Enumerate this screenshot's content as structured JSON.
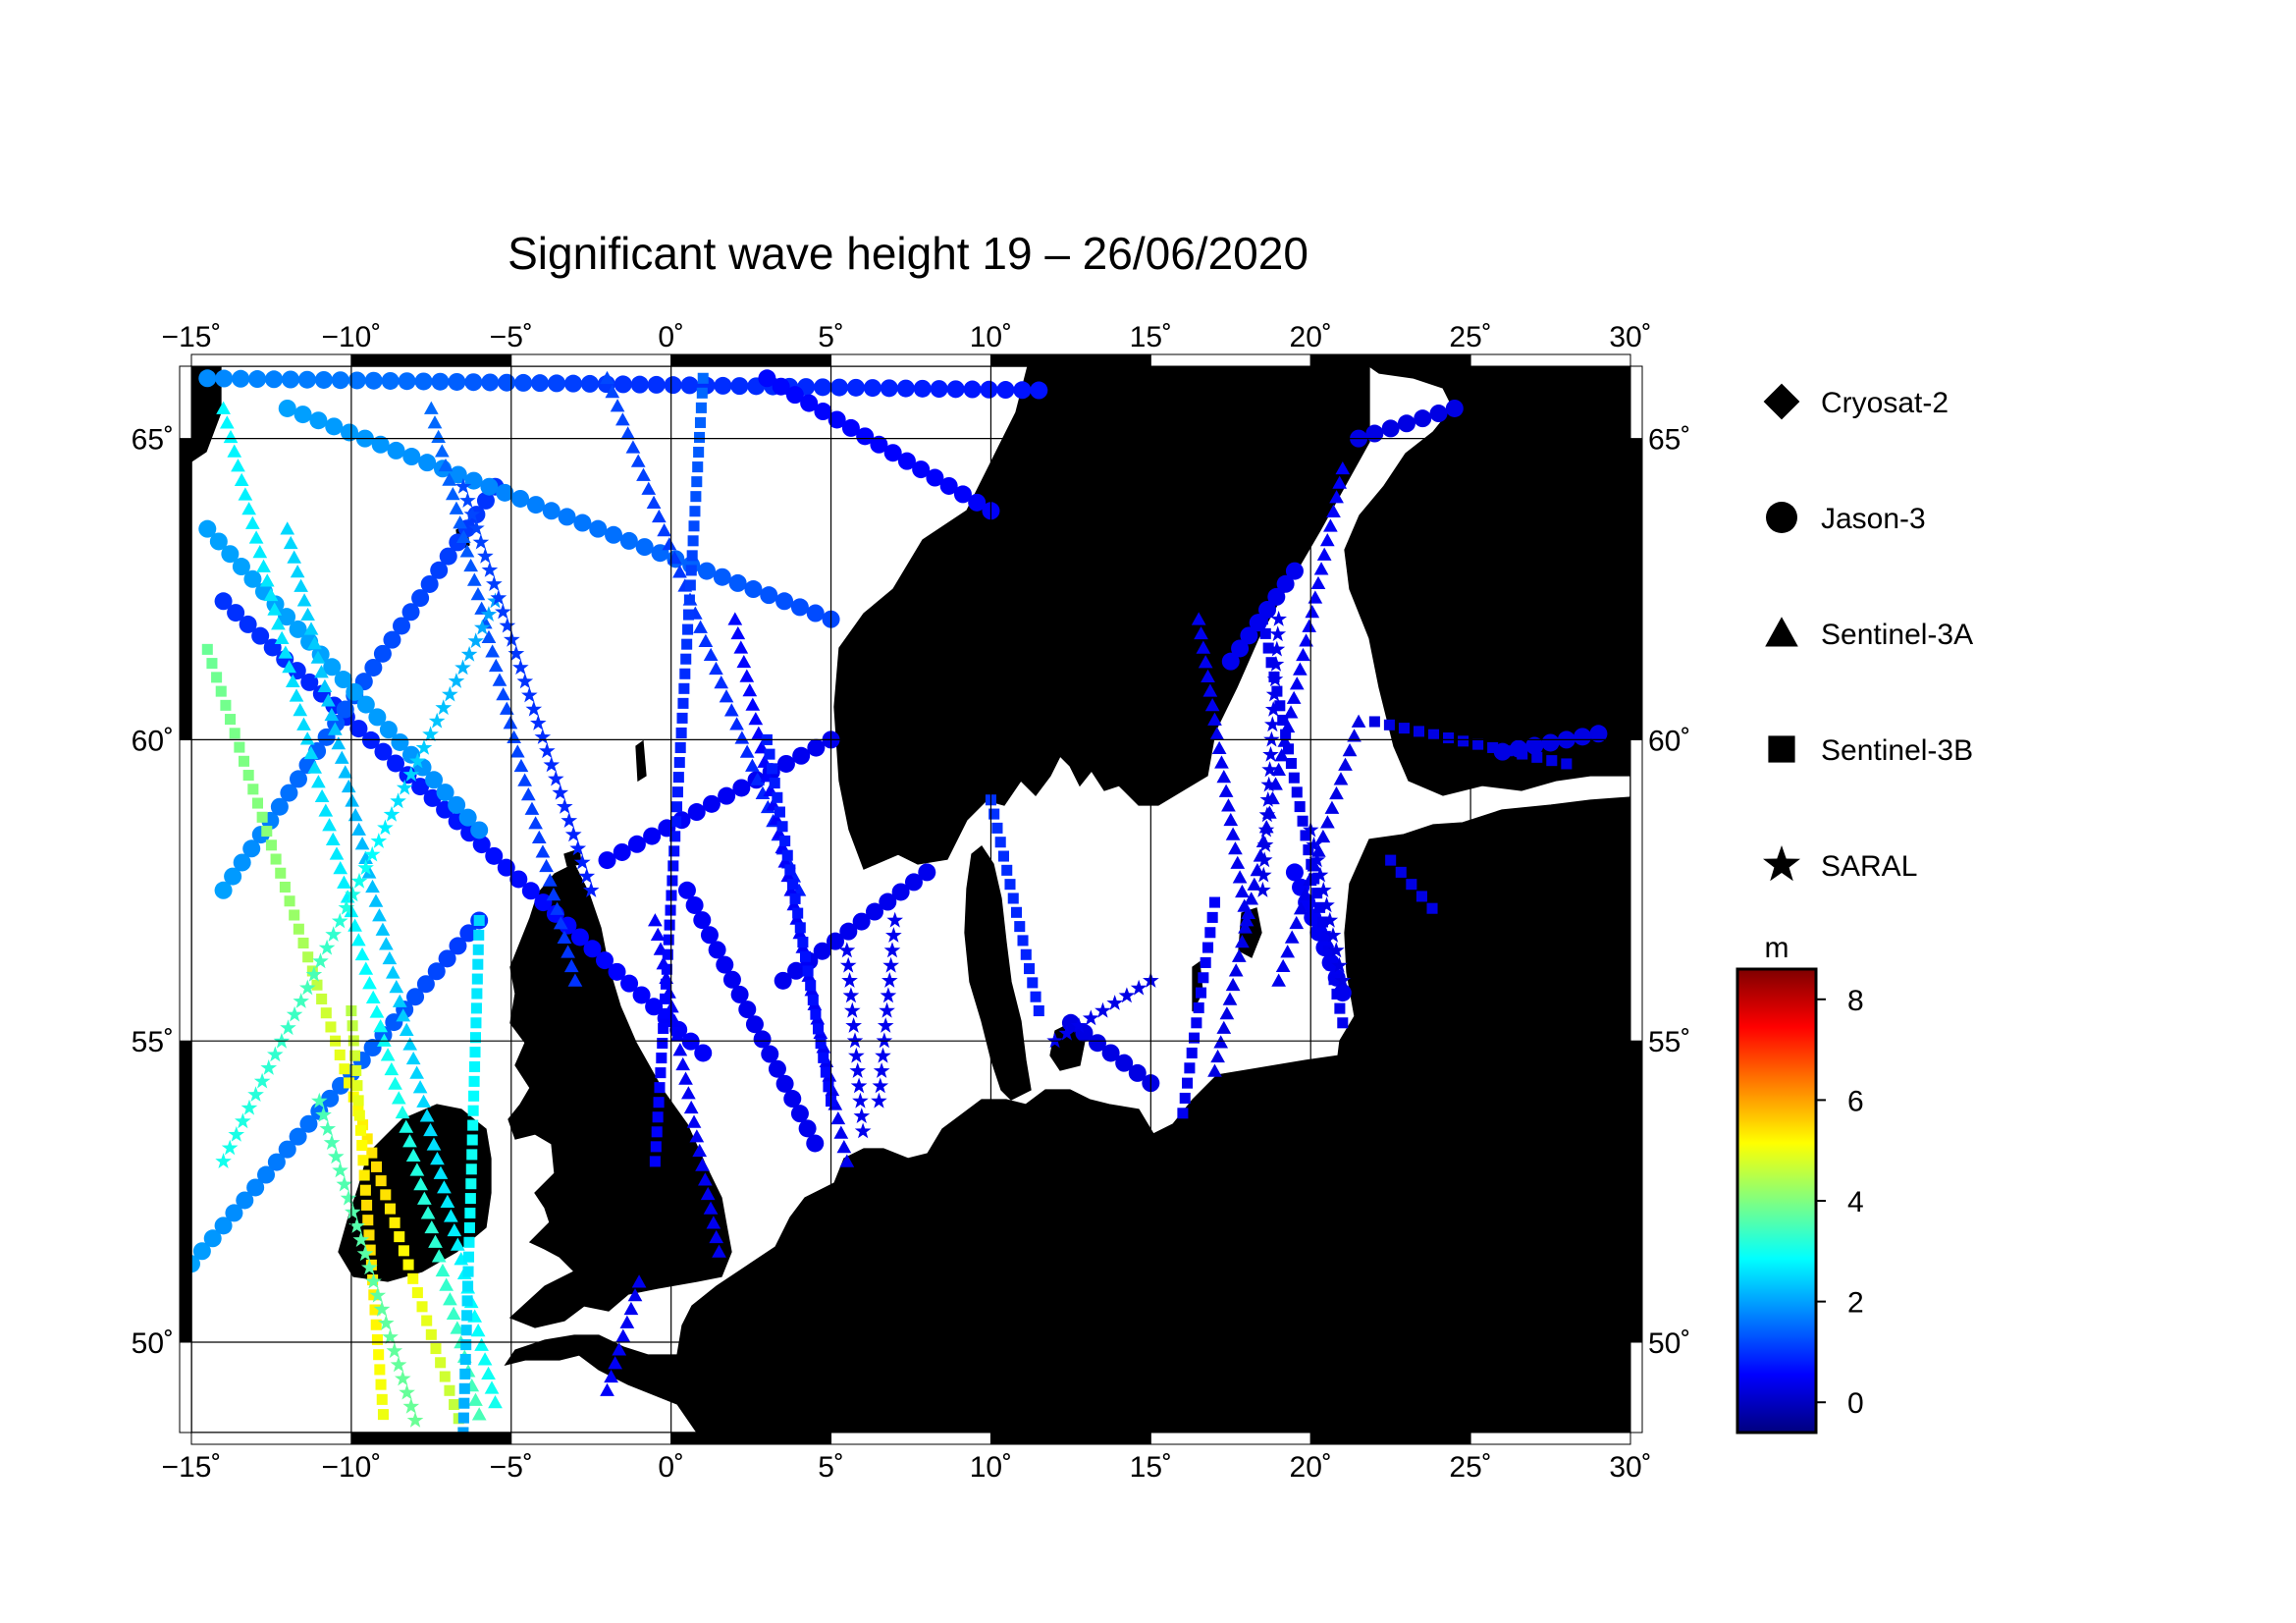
{
  "title": "Significant wave height 19 – 26/06/2020",
  "map": {
    "lon_range": [
      -15,
      30
    ],
    "lat_range": [
      48.5,
      66.2
    ],
    "lon_ticks": [
      {
        "value": -15,
        "label": "−15˚"
      },
      {
        "value": -10,
        "label": "−10˚"
      },
      {
        "value": -5,
        "label": "−5˚"
      },
      {
        "value": 0,
        "label": "0˚"
      },
      {
        "value": 5,
        "label": "5˚"
      },
      {
        "value": 10,
        "label": "10˚"
      },
      {
        "value": 15,
        "label": "15˚"
      },
      {
        "value": 20,
        "label": "20˚"
      },
      {
        "value": 25,
        "label": "25˚"
      },
      {
        "value": 30,
        "label": "30˚"
      }
    ],
    "lat_ticks": [
      {
        "value": 50,
        "label": "50˚"
      },
      {
        "value": 55,
        "label": "55˚"
      },
      {
        "value": 60,
        "label": "60˚"
      },
      {
        "value": 65,
        "label": "65˚"
      }
    ],
    "land_color": "#bebebe",
    "sea_color": "#ffffff",
    "grid": true
  },
  "legend": {
    "placement": "right",
    "items": [
      {
        "label": "Cryosat-2",
        "symbol": "diamond"
      },
      {
        "label": "Jason-3",
        "symbol": "circle"
      },
      {
        "label": "Sentinel-3A",
        "symbol": "triangle"
      },
      {
        "label": "Sentinel-3B",
        "symbol": "square"
      },
      {
        "label": "SARAL",
        "symbol": "star"
      }
    ]
  },
  "colorbar": {
    "unit": "m",
    "range": [
      -0.6,
      8.6
    ],
    "ticks": [
      {
        "value": 0,
        "label": "0"
      },
      {
        "value": 2,
        "label": "2"
      },
      {
        "value": 4,
        "label": "4"
      },
      {
        "value": 6,
        "label": "6"
      },
      {
        "value": 8,
        "label": "8"
      }
    ],
    "colors": [
      "#00007f",
      "#0000ff",
      "#0080ff",
      "#00ffff",
      "#80ff80",
      "#ffff00",
      "#ff8000",
      "#ff0000",
      "#7f0000"
    ]
  },
  "chart_data": {
    "type": "scatter",
    "title": "Significant wave height 19 – 26/06/2020",
    "xlabel": "",
    "ylabel": "",
    "xlim": [
      -15,
      30
    ],
    "ylim": [
      48.5,
      66.2
    ],
    "color_variable": "significant wave height (m)",
    "series": [
      {
        "name": "Jason-3",
        "marker": "circle",
        "tracks": [
          {
            "from": [
              -14.5,
              66.0
            ],
            "to": [
              11.5,
              65.8
            ],
            "hs": [
              1.8,
              1.5,
              1.0,
              0.9,
              0.7
            ]
          },
          {
            "from": [
              -14.0,
              62.3
            ],
            "to": [
              1.0,
              54.8
            ],
            "hs": [
              1.0,
              0.8,
              0.6,
              0.5
            ]
          },
          {
            "from": [
              -14.0,
              57.5
            ],
            "to": [
              -5.5,
              64.2
            ],
            "hs": [
              2.0,
              1.4,
              1.2,
              1.0
            ]
          },
          {
            "from": [
              -15.0,
              51.3
            ],
            "to": [
              -6.0,
              57.0
            ],
            "hs": [
              2.0,
              1.6,
              1.4,
              1.0
            ]
          },
          {
            "from": [
              -12.0,
              65.5
            ],
            "to": [
              5.0,
              62.0
            ],
            "hs": [
              2.0,
              1.8,
              1.5,
              1.2
            ]
          },
          {
            "from": [
              -14.5,
              63.5
            ],
            "to": [
              -6.0,
              58.5
            ],
            "hs": [
              2.0,
              2.0,
              1.8
            ]
          },
          {
            "from": [
              -2.0,
              58.0
            ],
            "to": [
              5.0,
              60.0
            ],
            "hs": [
              0.5,
              0.4
            ]
          },
          {
            "from": [
              0.5,
              57.5
            ],
            "to": [
              4.5,
              53.3
            ],
            "hs": [
              0.5,
              0.4,
              0.4
            ]
          },
          {
            "from": [
              3.5,
              56.0
            ],
            "to": [
              8.0,
              57.8
            ],
            "hs": [
              0.4,
              0.4
            ]
          },
          {
            "from": [
              3.0,
              66.0
            ],
            "to": [
              10.0,
              63.8
            ],
            "hs": [
              0.6,
              0.5
            ]
          },
          {
            "from": [
              19.5,
              57.8
            ],
            "to": [
              21.0,
              55.8
            ],
            "hs": [
              0.5,
              0.4
            ]
          },
          {
            "from": [
              21.5,
              65.0
            ],
            "to": [
              24.5,
              65.5
            ],
            "hs": [
              0.3,
              0.3
            ]
          },
          {
            "from": [
              17.5,
              61.3
            ],
            "to": [
              19.5,
              62.8
            ],
            "hs": [
              0.4,
              0.4
            ]
          },
          {
            "from": [
              12.5,
              55.3
            ],
            "to": [
              15.0,
              54.3
            ],
            "hs": [
              0.3,
              0.3
            ]
          },
          {
            "from": [
              26.0,
              59.8
            ],
            "to": [
              29.0,
              60.1
            ],
            "hs": [
              0.3,
              0.3
            ]
          }
        ]
      },
      {
        "name": "Sentinel-3A",
        "marker": "triangle",
        "tracks": [
          {
            "from": [
              -14.0,
              65.5
            ],
            "to": [
              -6.0,
              48.8
            ],
            "hs": [
              2.8,
              2.5,
              3.0,
              3.5
            ]
          },
          {
            "from": [
              -12.0,
              63.5
            ],
            "to": [
              -5.5,
              49.0
            ],
            "hs": [
              2.5,
              2.2,
              2.5,
              3.0
            ]
          },
          {
            "from": [
              -7.5,
              65.5
            ],
            "to": [
              -3.0,
              56.0
            ],
            "hs": [
              1.5,
              1.2,
              1.0
            ]
          },
          {
            "from": [
              -2.0,
              66.0
            ],
            "to": [
              4.0,
              57.5
            ],
            "hs": [
              1.2,
              1.0,
              0.8
            ]
          },
          {
            "from": [
              2.0,
              62.0
            ],
            "to": [
              5.5,
              53.0
            ],
            "hs": [
              0.6,
              0.5,
              0.4
            ]
          },
          {
            "from": [
              -0.5,
              57.0
            ],
            "to": [
              1.5,
              51.5
            ],
            "hs": [
              0.5,
              0.4
            ]
          },
          {
            "from": [
              -2.0,
              49.2
            ],
            "to": [
              -1.0,
              51.0
            ],
            "hs": [
              0.5,
              0.4
            ]
          },
          {
            "from": [
              21.0,
              64.5
            ],
            "to": [
              17.0,
              54.5
            ],
            "hs": [
              0.5,
              0.4,
              0.3
            ]
          },
          {
            "from": [
              16.5,
              62.0
            ],
            "to": [
              18.0,
              57.0
            ],
            "hs": [
              0.4,
              0.4
            ]
          },
          {
            "from": [
              19.0,
              56.0
            ],
            "to": [
              21.5,
              60.3
            ],
            "hs": [
              0.4,
              0.3
            ]
          }
        ]
      },
      {
        "name": "Sentinel-3B",
        "marker": "square",
        "tracks": [
          {
            "from": [
              -14.5,
              61.5
            ],
            "to": [
              -6.5,
              48.5
            ],
            "hs": [
              3.8,
              4.2,
              5.5,
              4.5
            ]
          },
          {
            "from": [
              -10.0,
              55.5
            ],
            "to": [
              -9.0,
              48.8
            ],
            "hs": [
              4.5,
              5.5,
              5.0
            ]
          },
          {
            "from": [
              -6.0,
              57.0
            ],
            "to": [
              -6.5,
              48.5
            ],
            "hs": [
              2.5,
              3.0,
              2.0
            ]
          },
          {
            "from": [
              3.0,
              60.0
            ],
            "to": [
              5.0,
              54.0
            ],
            "hs": [
              0.8,
              0.7,
              0.6
            ]
          },
          {
            "from": [
              10.0,
              59.0
            ],
            "to": [
              11.5,
              55.5
            ],
            "hs": [
              1.0,
              0.8
            ]
          },
          {
            "from": [
              1.0,
              66.0
            ],
            "to": [
              -0.5,
              53.0
            ],
            "hs": [
              1.5,
              1.0,
              0.6,
              0.5
            ]
          },
          {
            "from": [
              17.0,
              57.3
            ],
            "to": [
              16.0,
              53.8
            ],
            "hs": [
              0.5,
              0.4
            ]
          },
          {
            "from": [
              18.5,
              62.0
            ],
            "to": [
              21.0,
              55.3
            ],
            "hs": [
              0.4,
              0.4
            ]
          },
          {
            "from": [
              22.5,
              58.0
            ],
            "to": [
              23.8,
              57.2
            ],
            "hs": [
              0.3,
              0.3
            ]
          },
          {
            "from": [
              22.0,
              60.3
            ],
            "to": [
              28.0,
              59.6
            ],
            "hs": [
              0.3,
              0.3
            ]
          }
        ]
      },
      {
        "name": "SARAL",
        "marker": "star",
        "tracks": [
          {
            "from": [
              -14.0,
              53.0
            ],
            "to": [
              -5.5,
              62.3
            ],
            "hs": [
              3.0,
              3.5,
              2.5,
              2.0
            ]
          },
          {
            "from": [
              -11.0,
              54.0
            ],
            "to": [
              -8.0,
              48.7
            ],
            "hs": [
              3.5,
              3.8
            ]
          },
          {
            "from": [
              -6.5,
              64.2
            ],
            "to": [
              -2.5,
              57.5
            ],
            "hs": [
              1.2,
              1.0,
              0.8
            ]
          },
          {
            "from": [
              5.5,
              56.5
            ],
            "to": [
              6.0,
              53.5
            ],
            "hs": [
              0.4,
              0.4
            ]
          },
          {
            "from": [
              7.0,
              57.0
            ],
            "to": [
              6.5,
              54.0
            ],
            "hs": [
              0.4,
              0.4
            ]
          },
          {
            "from": [
              12.0,
              55.0
            ],
            "to": [
              15.0,
              56.0
            ],
            "hs": [
              0.4,
              0.3
            ]
          },
          {
            "from": [
              19.0,
              62.0
            ],
            "to": [
              18.5,
              57.5
            ],
            "hs": [
              0.4,
              0.3
            ]
          },
          {
            "from": [
              20.0,
              58.5
            ],
            "to": [
              21.0,
              56.0
            ],
            "hs": [
              0.4,
              0.3
            ]
          }
        ]
      },
      {
        "name": "Cryosat-2",
        "marker": "diamond",
        "tracks": []
      }
    ]
  }
}
